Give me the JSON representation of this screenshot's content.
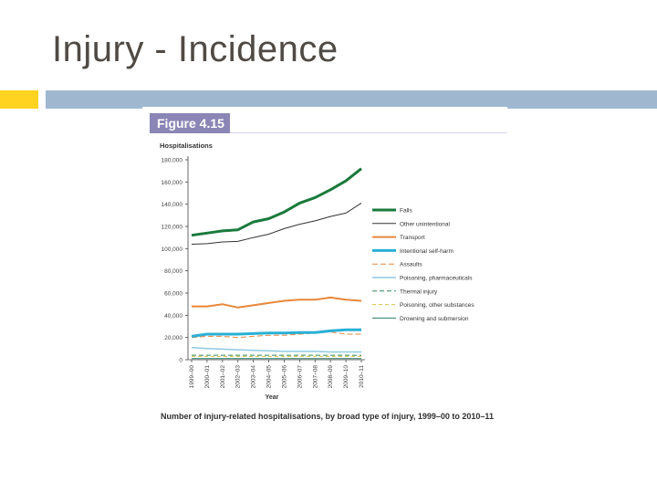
{
  "slide": {
    "title": "Injury - Incidence",
    "accent_colors": {
      "yellow": "#ffd320",
      "blue": "#9fb8d0",
      "figure_header": "#8a86b5"
    }
  },
  "figure": {
    "label": "Figure 4.15",
    "caption": "Number of injury-related hospitalisations, by broad type of injury, 1999–00 to 2010–11"
  },
  "chart_data": {
    "type": "line",
    "ylabel": "Hospitalisations",
    "xlabel": "Year",
    "ylim": [
      0,
      180000
    ],
    "yticks": [
      0,
      20000,
      40000,
      60000,
      80000,
      100000,
      120000,
      140000,
      160000,
      180000
    ],
    "ytick_labels": [
      "0",
      "20,000",
      "40,000",
      "60,000",
      "80,000",
      "100,000",
      "120,000",
      "140,000",
      "160,000",
      "180,000"
    ],
    "x": [
      "1999–00",
      "2000–01",
      "2001–02",
      "2002–03",
      "2003–04",
      "2004–05",
      "2005–06",
      "2006–07",
      "2007–08",
      "2008–09",
      "2009–10",
      "2010–11"
    ],
    "grid": false,
    "legend_position": "right",
    "series": [
      {
        "name": "Falls",
        "color": "#1a7a3c",
        "dash": "solid",
        "width": 3,
        "values": [
          112000,
          114000,
          116000,
          117000,
          124000,
          127000,
          133000,
          141000,
          146000,
          153000,
          161000,
          172000
        ]
      },
      {
        "name": "Other unintentional",
        "color": "#333333",
        "dash": "solid",
        "width": 1,
        "values": [
          104000,
          104500,
          106000,
          106500,
          110000,
          113000,
          118000,
          122000,
          125000,
          129000,
          132000,
          141000
        ]
      },
      {
        "name": "Transport",
        "color": "#e8873a",
        "dash": "solid",
        "width": 2,
        "values": [
          48000,
          48000,
          50000,
          47000,
          49000,
          51000,
          53000,
          54000,
          54000,
          56000,
          54000,
          53000
        ]
      },
      {
        "name": "Intentional self-harm",
        "color": "#2ab0d6",
        "dash": "solid",
        "width": 3,
        "values": [
          21000,
          23000,
          23000,
          23000,
          23500,
          24000,
          24000,
          24500,
          24500,
          26000,
          27000,
          27000
        ]
      },
      {
        "name": "Assaults",
        "color": "#e8873a",
        "dash": "6,3",
        "width": 1,
        "values": [
          20000,
          21000,
          21000,
          20000,
          21000,
          22000,
          22000,
          23000,
          24000,
          25000,
          23000,
          23000
        ]
      },
      {
        "name": "Poisoning, pharmaceuticals",
        "color": "#8fc9e2",
        "dash": "solid",
        "width": 1.5,
        "values": [
          11000,
          10000,
          9500,
          9000,
          8500,
          8000,
          7500,
          7500,
          7500,
          7000,
          7000,
          7000
        ]
      },
      {
        "name": "Thermal injury",
        "color": "#2f8a5a",
        "dash": "5,3",
        "width": 1,
        "values": [
          4000,
          4000,
          4000,
          4000,
          4000,
          4000,
          4000,
          4000,
          4000,
          4000,
          4000,
          4000
        ]
      },
      {
        "name": "Poisoning, other substances",
        "color": "#d9c24a",
        "dash": "4,3",
        "width": 1,
        "values": [
          3000,
          3000,
          3000,
          3000,
          3000,
          3000,
          3000,
          3000,
          3000,
          3000,
          3000,
          3000
        ]
      },
      {
        "name": "Drowning and submersion",
        "color": "#2d7a6a",
        "dash": "solid",
        "width": 1,
        "values": [
          1000,
          1000,
          1000,
          1000,
          1000,
          1000,
          1000,
          1000,
          1000,
          1000,
          1000,
          1000
        ]
      }
    ]
  }
}
